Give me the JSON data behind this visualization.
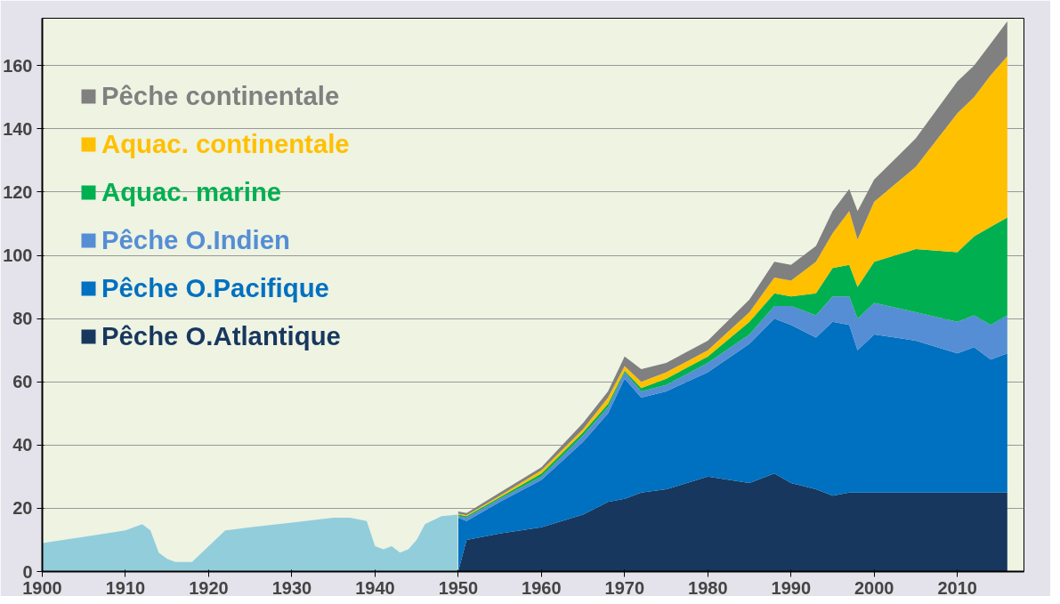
{
  "chart_data": {
    "type": "area",
    "stacked": true,
    "xlim": [
      1900,
      2018
    ],
    "ylim": [
      0,
      175
    ],
    "xticks": [
      1900,
      1910,
      1920,
      1930,
      1940,
      1950,
      1960,
      1970,
      1980,
      1990,
      2000,
      2010
    ],
    "yticks": [
      0,
      20,
      40,
      60,
      80,
      100,
      120,
      140,
      160
    ],
    "grid": "y",
    "legend": "top left",
    "x": [
      1900,
      1905,
      1910,
      1912,
      1913,
      1914,
      1915,
      1916,
      1918,
      1920,
      1922,
      1925,
      1930,
      1935,
      1937,
      1939,
      1940,
      1941,
      1942,
      1943,
      1944,
      1945,
      1946,
      1948,
      1949.9,
      1950,
      1951,
      1955,
      1960,
      1965,
      1968,
      1970,
      1972,
      1975,
      1980,
      1985,
      1988,
      1990,
      1993,
      1995,
      1997,
      1998,
      2000,
      2005,
      2010,
      2012,
      2014,
      2016
    ],
    "series": [
      {
        "color": "#92cddc",
        "values": [
          9,
          11,
          13,
          15,
          13,
          6,
          4,
          3,
          3,
          8,
          13,
          14,
          15.5,
          17,
          17,
          16,
          8,
          7,
          8,
          6,
          7,
          10,
          15,
          17.5,
          18,
          null,
          null,
          null,
          null,
          null,
          null,
          null,
          null,
          null,
          null,
          null,
          null,
          null,
          null,
          null,
          null,
          null,
          null,
          null,
          null,
          null,
          null,
          null
        ]
      },
      {
        "name": "Pêche O.Atlantique",
        "color": "#17375e",
        "values": [
          null,
          null,
          null,
          null,
          null,
          null,
          null,
          null,
          null,
          null,
          null,
          null,
          null,
          null,
          null,
          null,
          null,
          null,
          null,
          null,
          null,
          null,
          null,
          null,
          null,
          0,
          10,
          12,
          14,
          18,
          22,
          23,
          25,
          26,
          30,
          28,
          31,
          28,
          26,
          24,
          25,
          25,
          25,
          25,
          25,
          25,
          25,
          25
        ]
      },
      {
        "name": "Pêche O.Pacifique",
        "color": "#0070c0",
        "values": [
          null,
          null,
          null,
          null,
          null,
          null,
          null,
          null,
          null,
          null,
          null,
          null,
          null,
          null,
          null,
          null,
          null,
          null,
          null,
          null,
          null,
          null,
          null,
          null,
          null,
          17,
          6,
          10,
          15,
          23,
          28,
          38,
          30,
          31,
          33,
          44,
          49,
          50,
          48,
          55,
          53,
          45,
          50,
          48,
          44,
          46,
          42,
          44
        ]
      },
      {
        "name": "Pêche O.Indien",
        "color": "#558ed5",
        "values": [
          null,
          null,
          null,
          null,
          null,
          null,
          null,
          null,
          null,
          null,
          null,
          null,
          null,
          null,
          null,
          null,
          null,
          null,
          null,
          null,
          null,
          null,
          null,
          null,
          null,
          0.5,
          1,
          1,
          1,
          2,
          2,
          2,
          2,
          2,
          3,
          3,
          4,
          6,
          7,
          8,
          9,
          10,
          10,
          9,
          10,
          10,
          11,
          12
        ]
      },
      {
        "name": "Aquac. marine",
        "color": "#00b050",
        "values": [
          null,
          null,
          null,
          null,
          null,
          null,
          null,
          null,
          null,
          null,
          null,
          null,
          null,
          null,
          null,
          null,
          null,
          null,
          null,
          null,
          null,
          null,
          null,
          null,
          null,
          0.5,
          0.5,
          0.5,
          1,
          1,
          1,
          0.5,
          1,
          2,
          2,
          4,
          4,
          3,
          7,
          9,
          10,
          10,
          13,
          20,
          22,
          25,
          31,
          31
        ]
      },
      {
        "name": "Aquac. continentale",
        "color": "#ffc000",
        "values": [
          null,
          null,
          null,
          null,
          null,
          null,
          null,
          null,
          null,
          null,
          null,
          null,
          null,
          null,
          null,
          null,
          null,
          null,
          null,
          null,
          null,
          null,
          null,
          null,
          null,
          0.3,
          0.3,
          0.5,
          1,
          1,
          2,
          1.5,
          2,
          2,
          2,
          3,
          5,
          5,
          10,
          11,
          17,
          15,
          19,
          26,
          44,
          44,
          48,
          51
        ]
      },
      {
        "name": "Pêche continentale",
        "color": "#808080",
        "values": [
          null,
          null,
          null,
          null,
          null,
          null,
          null,
          null,
          null,
          null,
          null,
          null,
          null,
          null,
          null,
          null,
          null,
          null,
          null,
          null,
          null,
          null,
          null,
          null,
          null,
          0.7,
          0.7,
          1,
          1,
          2,
          2,
          3,
          4,
          3,
          3,
          4,
          5,
          5,
          5,
          7,
          7,
          9,
          7,
          9,
          10,
          10,
          10,
          11
        ]
      }
    ]
  }
}
